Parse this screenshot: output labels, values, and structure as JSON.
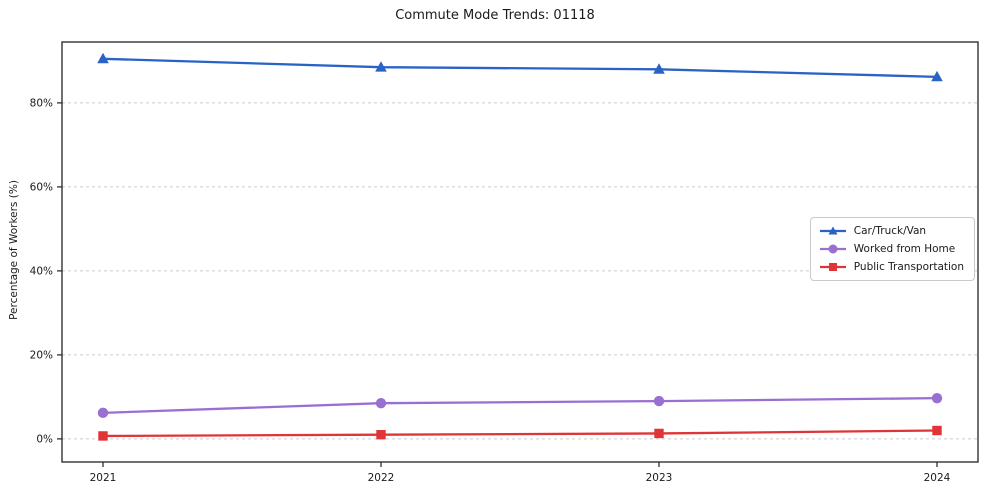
{
  "chart_data": {
    "type": "line",
    "title": "Commute Mode Trends: 01118",
    "ylabel": "Percentage of Workers (%)",
    "xlabel": "",
    "categories": [
      "2021",
      "2022",
      "2023",
      "2024"
    ],
    "series": [
      {
        "name": "Car/Truck/Van",
        "values": [
          90.5,
          88.5,
          88.0,
          86.2
        ],
        "color": "#2a62c6",
        "marker": "triangle"
      },
      {
        "name": "Worked from Home",
        "values": [
          6.2,
          8.5,
          9.0,
          9.7
        ],
        "color": "#9a6fd2",
        "marker": "circle"
      },
      {
        "name": "Public Transportation",
        "values": [
          0.7,
          1.0,
          1.3,
          2.0
        ],
        "color": "#e03436",
        "marker": "square"
      }
    ],
    "yticks": [
      0,
      20,
      40,
      60,
      80
    ],
    "ytick_labels": [
      "0%",
      "20%",
      "40%",
      "60%",
      "80%"
    ],
    "ylim": [
      -5.5,
      94.5
    ],
    "grid": true,
    "grid_color": "#cccccc",
    "axis_color": "#222222",
    "legend_position": "right-middle"
  }
}
